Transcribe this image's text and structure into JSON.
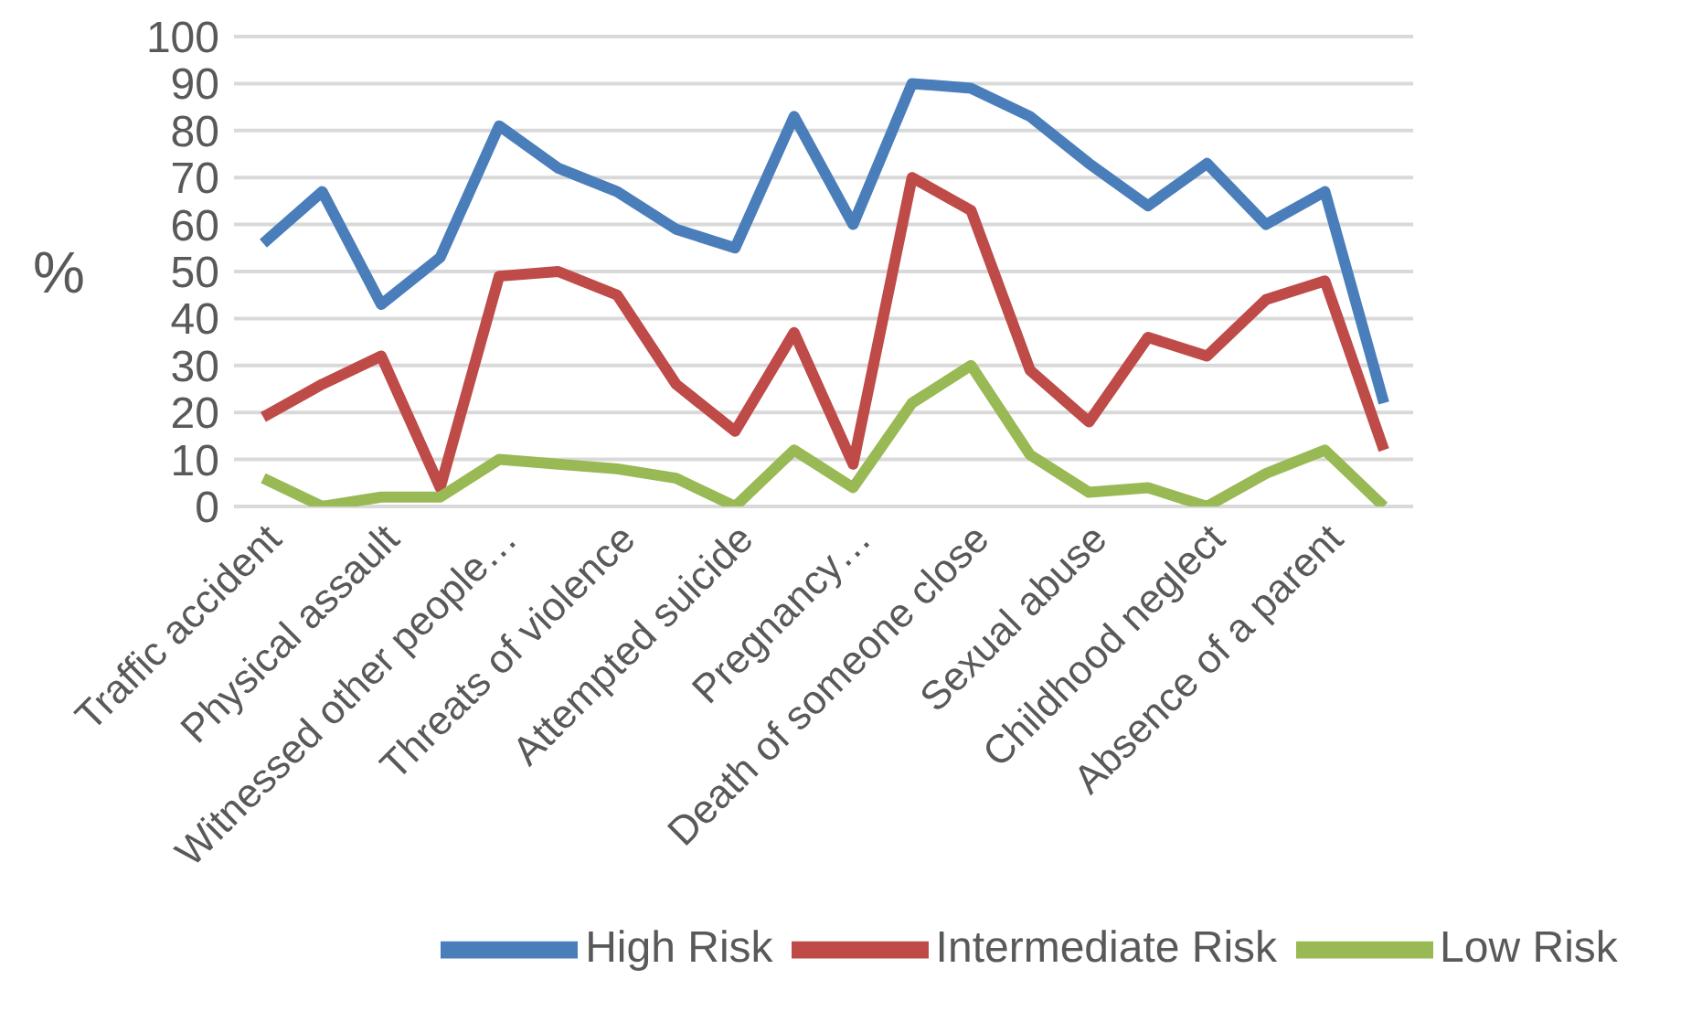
{
  "chart_data": {
    "type": "line",
    "ylabel": "%",
    "categories": [
      "Traffic accident",
      null,
      "Physical assault",
      null,
      "Witnessed other people…",
      null,
      "Threats of violence",
      null,
      "Attempted suicide",
      null,
      "Pregnancy…",
      null,
      "Death of someone close",
      null,
      "Sexual abuse",
      null,
      "Childhood neglect",
      null,
      "Absence of a parent",
      null
    ],
    "series": [
      {
        "name": "High Risk",
        "color": "#4a7ebb",
        "values": [
          56,
          67,
          43,
          53,
          81,
          72,
          67,
          59,
          55,
          83,
          60,
          90,
          89,
          83,
          73,
          64,
          73,
          60,
          67,
          22
        ]
      },
      {
        "name": "Intermediate Risk",
        "color": "#be4b48",
        "values": [
          19,
          26,
          32,
          4,
          49,
          50,
          45,
          26,
          16,
          37,
          9,
          70,
          63,
          29,
          18,
          36,
          32,
          44,
          48,
          12
        ]
      },
      {
        "name": "Low Risk",
        "color": "#98b954",
        "values": [
          6,
          0,
          2,
          2,
          10,
          9,
          8,
          6,
          0,
          12,
          4,
          22,
          30,
          11,
          3,
          4,
          0,
          7,
          12,
          0
        ]
      }
    ],
    "ylim": [
      0,
      100
    ],
    "yticks": [
      0,
      10,
      20,
      30,
      40,
      50,
      60,
      70,
      80,
      90,
      100
    ],
    "grid": "y",
    "legend": "bottom",
    "marker": "none",
    "line_style": "solid"
  }
}
